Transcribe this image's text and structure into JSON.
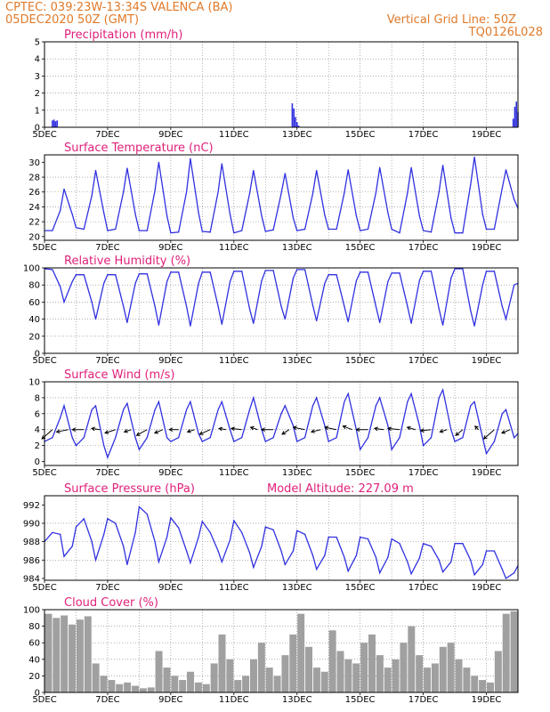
{
  "header": {
    "line1_left": "CPTEC:   039:23W-13:34S   VALENCA (BA)",
    "line2_left": "05DEC2020 50Z (GMT)",
    "line1_right": "Vertical Grid Line: 50Z",
    "line2_right": "TQ0126L028"
  },
  "colors": {
    "header": "#e07a2a",
    "title": "#e0207a",
    "series": "#3030e0",
    "cloud": "#a0a0a0",
    "grid": "#808080"
  },
  "x_tick_labels": [
    "5DEC",
    "7DEC",
    "9DEC",
    "11DEC",
    "13DEC",
    "15DEC",
    "17DEC",
    "19DEC"
  ],
  "chart_data": [
    {
      "type": "bar",
      "title": "Precipitation (mm/h)",
      "ylim": [
        0,
        5
      ],
      "yticks": [
        0,
        1,
        2,
        3,
        4,
        5
      ],
      "xlim": [
        0,
        15
      ],
      "x": [
        0.25,
        0.3,
        0.35,
        0.4,
        7.85,
        7.9,
        7.95,
        8.0,
        8.05,
        14.85,
        14.9,
        14.95,
        15.0
      ],
      "values": [
        0.4,
        0.45,
        0.35,
        0.4,
        1.4,
        1.1,
        0.6,
        0.3,
        0.1,
        0.5,
        1.2,
        1.5,
        0.9
      ]
    },
    {
      "type": "line",
      "title": "Surface Temperature (nC)",
      "ylim": [
        19.5,
        31
      ],
      "yticks": [
        20,
        22,
        24,
        26,
        28,
        30
      ],
      "xlim": [
        0,
        15
      ],
      "x": [
        0,
        0.25,
        0.5,
        0.62,
        0.88,
        1.0,
        1.25,
        1.5,
        1.62,
        1.88,
        2.0,
        2.25,
        2.5,
        2.62,
        2.88,
        3.0,
        3.25,
        3.5,
        3.62,
        3.88,
        4.0,
        4.25,
        4.5,
        4.62,
        4.88,
        5.0,
        5.25,
        5.5,
        5.62,
        5.88,
        6.0,
        6.25,
        6.5,
        6.62,
        6.88,
        7.0,
        7.25,
        7.5,
        7.62,
        7.88,
        8.0,
        8.25,
        8.5,
        8.62,
        8.88,
        9.0,
        9.25,
        9.5,
        9.62,
        9.88,
        10.0,
        10.25,
        10.5,
        10.62,
        10.88,
        11.0,
        11.25,
        11.5,
        11.62,
        11.88,
        12.0,
        12.25,
        12.5,
        12.62,
        12.88,
        13.0,
        13.25,
        13.5,
        13.62,
        13.88,
        14.0,
        14.25,
        14.5,
        14.62,
        14.88,
        15.0
      ],
      "values": [
        20.8,
        20.8,
        23.5,
        26.4,
        23.0,
        21.2,
        21.0,
        25.5,
        28.9,
        23.2,
        20.8,
        21.0,
        26.0,
        29.2,
        23.0,
        20.8,
        20.8,
        26.2,
        30.0,
        22.8,
        20.5,
        20.6,
        26.0,
        30.5,
        23.2,
        20.7,
        20.6,
        26.0,
        29.8,
        23.0,
        20.5,
        20.8,
        25.8,
        28.9,
        22.8,
        20.7,
        20.9,
        25.8,
        28.5,
        22.5,
        20.8,
        21.0,
        25.8,
        28.9,
        22.9,
        21.0,
        21.0,
        25.9,
        29.0,
        22.8,
        20.8,
        21.0,
        25.9,
        29.3,
        23.2,
        21.0,
        20.5,
        25.9,
        29.3,
        22.8,
        20.8,
        20.6,
        26.0,
        29.6,
        22.5,
        20.5,
        20.5,
        27.0,
        30.7,
        23.0,
        21.0,
        21.0,
        26.5,
        29.0,
        25.0,
        23.8
      ]
    },
    {
      "type": "line",
      "title": "Relative Humidity (%)",
      "ylim": [
        0,
        100
      ],
      "yticks": [
        0,
        20,
        40,
        60,
        80,
        100
      ],
      "xlim": [
        0,
        15
      ],
      "x": [
        0,
        0.25,
        0.5,
        0.62,
        0.88,
        1.0,
        1.25,
        1.5,
        1.62,
        1.88,
        2.0,
        2.25,
        2.5,
        2.62,
        2.88,
        3.0,
        3.25,
        3.5,
        3.62,
        3.88,
        4.0,
        4.25,
        4.5,
        4.62,
        4.88,
        5.0,
        5.25,
        5.5,
        5.62,
        5.88,
        6.0,
        6.25,
        6.5,
        6.62,
        6.88,
        7.0,
        7.25,
        7.5,
        7.62,
        7.88,
        8.0,
        8.25,
        8.5,
        8.62,
        8.88,
        9.0,
        9.25,
        9.5,
        9.62,
        9.88,
        10.0,
        10.25,
        10.5,
        10.62,
        10.88,
        11.0,
        11.25,
        11.5,
        11.62,
        11.88,
        12.0,
        12.25,
        12.5,
        12.62,
        12.88,
        13.0,
        13.25,
        13.5,
        13.62,
        13.88,
        14.0,
        14.25,
        14.5,
        14.62,
        14.88,
        15.0
      ],
      "values": [
        99,
        98,
        78,
        60,
        84,
        92,
        92,
        60,
        40,
        82,
        92,
        92,
        55,
        36,
        82,
        93,
        93,
        55,
        33,
        84,
        95,
        95,
        55,
        32,
        82,
        95,
        95,
        55,
        34,
        84,
        96,
        96,
        52,
        35,
        85,
        97,
        97,
        55,
        40,
        88,
        98,
        98,
        56,
        38,
        82,
        92,
        92,
        55,
        37,
        85,
        95,
        95,
        55,
        36,
        84,
        94,
        94,
        55,
        35,
        85,
        96,
        96,
        52,
        33,
        88,
        99,
        99,
        50,
        32,
        80,
        96,
        96,
        55,
        40,
        80,
        82
      ]
    },
    {
      "type": "line",
      "title": "Surface Wind (m/s)",
      "ylim": [
        -0.5,
        10
      ],
      "yticks": [
        0,
        2,
        4,
        6,
        8,
        10
      ],
      "xlim": [
        0,
        15
      ],
      "x": [
        0,
        0.25,
        0.5,
        0.62,
        0.88,
        1.0,
        1.25,
        1.5,
        1.62,
        1.88,
        2.0,
        2.25,
        2.5,
        2.62,
        2.88,
        3.0,
        3.25,
        3.5,
        3.62,
        3.88,
        4.0,
        4.25,
        4.5,
        4.62,
        4.88,
        5.0,
        5.25,
        5.5,
        5.62,
        5.88,
        6.0,
        6.25,
        6.5,
        6.62,
        6.88,
        7.0,
        7.25,
        7.5,
        7.62,
        7.88,
        8.0,
        8.25,
        8.5,
        8.62,
        8.88,
        9.0,
        9.25,
        9.5,
        9.62,
        9.88,
        10.0,
        10.25,
        10.5,
        10.62,
        10.88,
        11.0,
        11.25,
        11.5,
        11.62,
        11.88,
        12.0,
        12.25,
        12.5,
        12.62,
        12.88,
        13.0,
        13.25,
        13.5,
        13.62,
        13.88,
        14.0,
        14.25,
        14.5,
        14.62,
        14.88,
        15.0
      ],
      "values": [
        2.5,
        3.0,
        5.5,
        7.0,
        3.0,
        2.0,
        3.0,
        6.5,
        7.0,
        2.0,
        0.5,
        3.0,
        6.5,
        7.3,
        3.0,
        1.5,
        3.0,
        6.5,
        7.5,
        3.0,
        2.5,
        3.0,
        6.5,
        7.5,
        3.5,
        2.5,
        3.0,
        6.5,
        7.5,
        4.0,
        2.5,
        3.0,
        6.5,
        8.0,
        4.0,
        2.5,
        3.0,
        6.0,
        7.0,
        4.5,
        2.5,
        3.0,
        7.0,
        8.0,
        4.5,
        2.5,
        3.0,
        7.5,
        8.5,
        4.0,
        1.5,
        3.0,
        7.0,
        8.0,
        4.5,
        1.5,
        3.0,
        7.5,
        8.5,
        4.5,
        2.0,
        3.0,
        8.0,
        9.0,
        4.0,
        2.5,
        3.0,
        7.0,
        7.5,
        3.0,
        1.0,
        2.5,
        6.0,
        6.5,
        3.0,
        3.5
      ],
      "vector_x": [
        0.25,
        0.75,
        1.25,
        1.75,
        2.25,
        2.75,
        3.25,
        3.75,
        4.25,
        4.75,
        5.25,
        5.75,
        6.25,
        6.75,
        7.25,
        7.75,
        8.25,
        8.75,
        9.25,
        9.75,
        10.25,
        10.75,
        11.25,
        11.75,
        12.25,
        12.75,
        13.25,
        13.75,
        14.25,
        14.75
      ],
      "vector_u": [
        -0.9,
        -1,
        -1,
        -0.7,
        -0.9,
        -0.6,
        -0.9,
        -0.7,
        -0.8,
        -0.6,
        -0.9,
        -0.6,
        -0.9,
        -0.6,
        -1,
        -0.6,
        -1,
        -0.8,
        -1,
        -0.8,
        -1,
        -0.8,
        -1,
        -0.7,
        -0.9,
        -0.6,
        -0.6,
        -0.3,
        -0.9,
        -0.7
      ],
      "vector_v": [
        -0.8,
        -0.2,
        0,
        0.1,
        -0.3,
        -0.2,
        -0.5,
        -0.3,
        0,
        -0.2,
        -0.4,
        0.1,
        0.1,
        0.2,
        0,
        -0.4,
        0.2,
        -0.2,
        0.2,
        0.3,
        0,
        0.1,
        0.1,
        0.2,
        -0.1,
        -0.2,
        -0.5,
        0.3,
        -0.8,
        -0.3
      ]
    },
    {
      "type": "line",
      "title": "Surface Pressure (hPa)",
      "annotation": "Model Altitude: 227.09 m",
      "ylim": [
        983.8,
        993
      ],
      "yticks": [
        984,
        986,
        988,
        990,
        992
      ],
      "xlim": [
        0,
        15
      ],
      "x": [
        0,
        0.25,
        0.5,
        0.62,
        0.88,
        1.0,
        1.25,
        1.5,
        1.62,
        1.88,
        2.0,
        2.25,
        2.5,
        2.62,
        2.88,
        3.0,
        3.25,
        3.5,
        3.62,
        3.88,
        4.0,
        4.25,
        4.5,
        4.62,
        4.88,
        5.0,
        5.25,
        5.5,
        5.62,
        5.88,
        6.0,
        6.25,
        6.5,
        6.62,
        6.88,
        7.0,
        7.25,
        7.5,
        7.62,
        7.88,
        8.0,
        8.25,
        8.5,
        8.62,
        8.88,
        9.0,
        9.25,
        9.5,
        9.62,
        9.88,
        10.0,
        10.25,
        10.5,
        10.62,
        10.88,
        11.0,
        11.25,
        11.5,
        11.62,
        11.88,
        12.0,
        12.25,
        12.5,
        12.62,
        12.88,
        13.0,
        13.25,
        13.5,
        13.62,
        13.88,
        14.0,
        14.25,
        14.5,
        14.62,
        14.88,
        15.0
      ],
      "values": [
        988.0,
        989.0,
        988.8,
        986.4,
        987.5,
        989.6,
        990.5,
        988.0,
        986.0,
        988.8,
        990.5,
        990.0,
        987.5,
        985.5,
        989.0,
        991.8,
        991.0,
        988.0,
        985.8,
        988.5,
        990.6,
        989.5,
        987.0,
        985.7,
        988.5,
        990.2,
        989.0,
        987.0,
        985.8,
        988.2,
        990.3,
        989.0,
        986.8,
        985.2,
        987.5,
        989.6,
        989.3,
        987.0,
        985.5,
        987.0,
        989.2,
        988.8,
        986.5,
        985.0,
        986.5,
        988.5,
        988.5,
        986.3,
        984.8,
        986.5,
        988.5,
        988.3,
        986.3,
        984.6,
        986.3,
        988.3,
        987.8,
        985.8,
        984.5,
        986.2,
        987.8,
        987.5,
        986.0,
        984.7,
        985.8,
        987.8,
        987.8,
        986.0,
        984.4,
        985.5,
        987.0,
        987.0,
        985.0,
        984.0,
        984.6,
        985.4
      ]
    },
    {
      "type": "bar",
      "title": "Cloud Cover (%)",
      "ylim": [
        0,
        100
      ],
      "yticks": [
        0,
        20,
        40,
        60,
        80,
        100
      ],
      "xlim": [
        0,
        15
      ],
      "x": [
        0.125,
        0.375,
        0.625,
        0.875,
        1.125,
        1.375,
        1.625,
        1.875,
        2.125,
        2.375,
        2.625,
        2.875,
        3.125,
        3.375,
        3.625,
        3.875,
        4.125,
        4.375,
        4.625,
        4.875,
        5.125,
        5.375,
        5.625,
        5.875,
        6.125,
        6.375,
        6.625,
        6.875,
        7.125,
        7.375,
        7.625,
        7.875,
        8.125,
        8.375,
        8.625,
        8.875,
        9.125,
        9.375,
        9.625,
        9.875,
        10.125,
        10.375,
        10.625,
        10.875,
        11.125,
        11.375,
        11.625,
        11.875,
        12.125,
        12.375,
        12.625,
        12.875,
        13.125,
        13.375,
        13.625,
        13.875,
        14.125,
        14.375,
        14.625,
        14.875
      ],
      "values": [
        95,
        90,
        93,
        82,
        88,
        92,
        35,
        20,
        15,
        10,
        12,
        8,
        5,
        6,
        50,
        30,
        20,
        15,
        25,
        12,
        10,
        35,
        70,
        40,
        15,
        20,
        40,
        60,
        30,
        20,
        45,
        70,
        95,
        55,
        30,
        25,
        75,
        50,
        40,
        35,
        60,
        70,
        45,
        30,
        40,
        60,
        80,
        45,
        30,
        35,
        55,
        60,
        40,
        30,
        20,
        15,
        12,
        50,
        95,
        98
      ]
    }
  ]
}
